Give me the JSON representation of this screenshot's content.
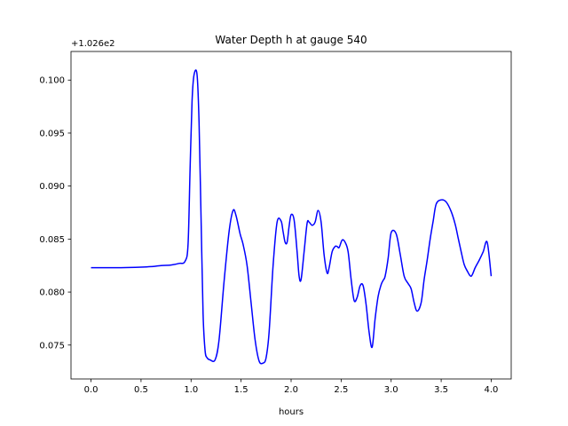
{
  "chart_data": {
    "type": "line",
    "title": "Water Depth h at gauge 540",
    "xlabel": "hours",
    "ylabel": "",
    "offset_label": "+1.026e2",
    "xlim": [
      -0.2,
      4.2
    ],
    "ylim": [
      0.0718,
      0.1027
    ],
    "xticks": [
      0.0,
      0.5,
      1.0,
      1.5,
      2.0,
      2.5,
      3.0,
      3.5,
      4.0
    ],
    "xtick_labels": [
      "0.0",
      "0.5",
      "1.0",
      "1.5",
      "2.0",
      "2.5",
      "3.0",
      "3.5",
      "4.0"
    ],
    "yticks": [
      0.075,
      0.08,
      0.085,
      0.09,
      0.095,
      0.1
    ],
    "ytick_labels": [
      "0.075",
      "0.080",
      "0.085",
      "0.090",
      "0.095",
      "0.100"
    ],
    "grid": false,
    "series": [
      {
        "color": "#0000ff",
        "x": [
          0.0,
          0.1,
          0.3,
          0.5,
          0.6,
          0.7,
          0.8,
          0.88,
          0.94,
          0.97,
          0.99,
          1.01,
          1.03,
          1.06,
          1.08,
          1.1,
          1.12,
          1.14,
          1.16,
          1.19,
          1.24,
          1.28,
          1.33,
          1.38,
          1.42,
          1.45,
          1.49,
          1.52,
          1.56,
          1.6,
          1.64,
          1.68,
          1.72,
          1.75,
          1.78,
          1.82,
          1.86,
          1.9,
          1.92,
          1.94,
          1.96,
          1.98,
          2.0,
          2.03,
          2.06,
          2.08,
          2.1,
          2.13,
          2.16,
          2.18,
          2.21,
          2.24,
          2.27,
          2.3,
          2.33,
          2.36,
          2.38,
          2.41,
          2.44,
          2.46,
          2.48,
          2.51,
          2.54,
          2.57,
          2.6,
          2.63,
          2.66,
          2.69,
          2.72,
          2.75,
          2.78,
          2.81,
          2.84,
          2.87,
          2.9,
          2.92,
          2.94,
          2.97,
          3.0,
          3.05,
          3.09,
          3.13,
          3.17,
          3.2,
          3.23,
          3.26,
          3.3,
          3.33,
          3.36,
          3.39,
          3.42,
          3.45,
          3.5,
          3.55,
          3.6,
          3.64,
          3.67,
          3.7,
          3.73,
          3.76,
          3.8,
          3.84,
          3.88,
          3.92,
          3.96,
          4.0
        ],
        "y": [
          0.0823,
          0.0823,
          0.0823,
          0.08235,
          0.0824,
          0.0825,
          0.08255,
          0.0827,
          0.0829,
          0.0845,
          0.0915,
          0.098,
          0.1005,
          0.1005,
          0.096,
          0.087,
          0.078,
          0.0745,
          0.0738,
          0.0736,
          0.0736,
          0.0755,
          0.081,
          0.0857,
          0.0877,
          0.0872,
          0.0855,
          0.0845,
          0.0825,
          0.079,
          0.0755,
          0.0735,
          0.0733,
          0.0738,
          0.0762,
          0.0825,
          0.0866,
          0.0867,
          0.0857,
          0.0847,
          0.0847,
          0.0862,
          0.0873,
          0.0868,
          0.0838,
          0.0815,
          0.0812,
          0.0838,
          0.0865,
          0.0866,
          0.0863,
          0.0866,
          0.0877,
          0.0866,
          0.0835,
          0.0818,
          0.0823,
          0.0838,
          0.0843,
          0.0843,
          0.0842,
          0.0849,
          0.0847,
          0.0838,
          0.0812,
          0.0792,
          0.0795,
          0.0806,
          0.0806,
          0.0788,
          0.0762,
          0.0748,
          0.0775,
          0.0796,
          0.0807,
          0.0811,
          0.0815,
          0.0832,
          0.0856,
          0.0855,
          0.0836,
          0.0815,
          0.0808,
          0.0803,
          0.079,
          0.0782,
          0.079,
          0.0812,
          0.083,
          0.085,
          0.0867,
          0.0883,
          0.0887,
          0.0885,
          0.0876,
          0.0864,
          0.0851,
          0.0838,
          0.0826,
          0.082,
          0.0815,
          0.0823,
          0.083,
          0.0838,
          0.0847,
          0.0815
        ]
      }
    ]
  }
}
